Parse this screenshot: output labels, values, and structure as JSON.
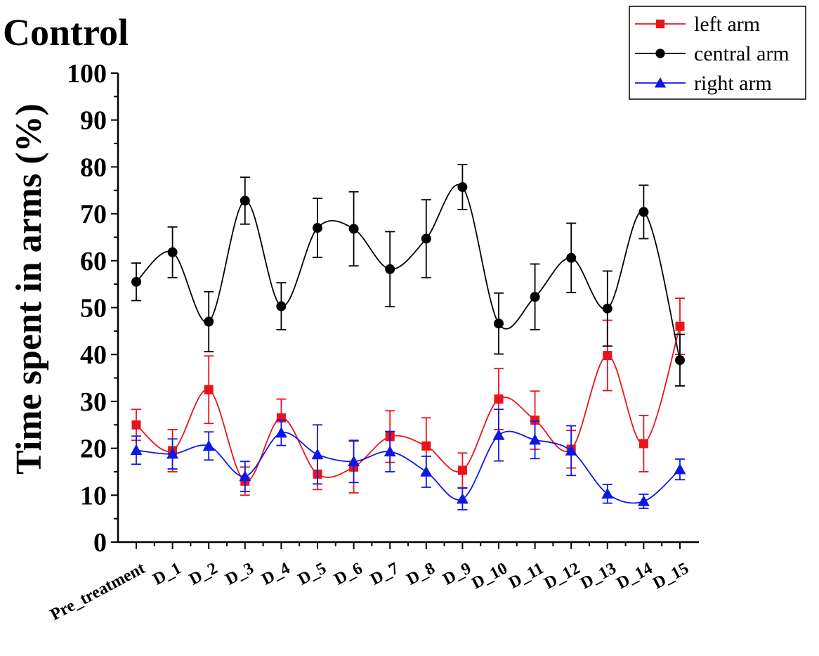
{
  "chart_data": {
    "type": "line",
    "title": "Control",
    "xlabel": "",
    "ylabel": "Time spent in arms (%)",
    "ylim": [
      0,
      100
    ],
    "yticks": [
      "0",
      "10",
      "20",
      "30",
      "40",
      "50",
      "60",
      "70",
      "80",
      "90",
      "100"
    ],
    "categories": [
      "Pre_treatment",
      "D_1",
      "D_2",
      "D_3",
      "D_4",
      "D_5",
      "D_6",
      "D_7",
      "D_8",
      "D_9",
      "D_10",
      "D_11",
      "D_12",
      "D_13",
      "D_14",
      "D_15"
    ],
    "legend_position": "top-right",
    "series": [
      {
        "name": "left arm",
        "color": "#e8141c",
        "marker": "square",
        "values": [
          25.0,
          19.5,
          32.5,
          13.0,
          26.5,
          14.5,
          16.0,
          22.5,
          20.5,
          15.3,
          30.5,
          26.0,
          19.8,
          39.8,
          21.0,
          46.0
        ],
        "error": [
          3.3,
          4.5,
          7.2,
          3.0,
          4.0,
          3.3,
          5.5,
          5.5,
          6.0,
          3.7,
          6.5,
          6.2,
          4.0,
          7.5,
          6.0,
          6.0
        ]
      },
      {
        "name": "central arm",
        "color": "#000000",
        "marker": "circle",
        "values": [
          55.5,
          61.8,
          47.0,
          72.8,
          50.3,
          67.0,
          66.8,
          58.2,
          64.7,
          75.7,
          46.6,
          52.3,
          60.6,
          49.8,
          70.4,
          38.8
        ],
        "error": [
          4.0,
          5.4,
          6.4,
          5.0,
          5.0,
          6.3,
          7.9,
          8.0,
          8.3,
          4.8,
          6.5,
          7.0,
          7.4,
          8.0,
          5.7,
          5.5
        ]
      },
      {
        "name": "right arm",
        "color": "#0d18e6",
        "marker": "triangle",
        "values": [
          19.6,
          18.8,
          20.5,
          14.0,
          23.3,
          18.7,
          17.2,
          19.3,
          15.0,
          9.2,
          22.8,
          21.8,
          19.5,
          10.3,
          8.7,
          15.5
        ],
        "error": [
          3.0,
          3.2,
          3.0,
          3.2,
          2.7,
          6.3,
          4.5,
          4.3,
          3.3,
          2.3,
          5.5,
          4.0,
          5.3,
          2.0,
          1.5,
          2.2
        ]
      }
    ]
  }
}
